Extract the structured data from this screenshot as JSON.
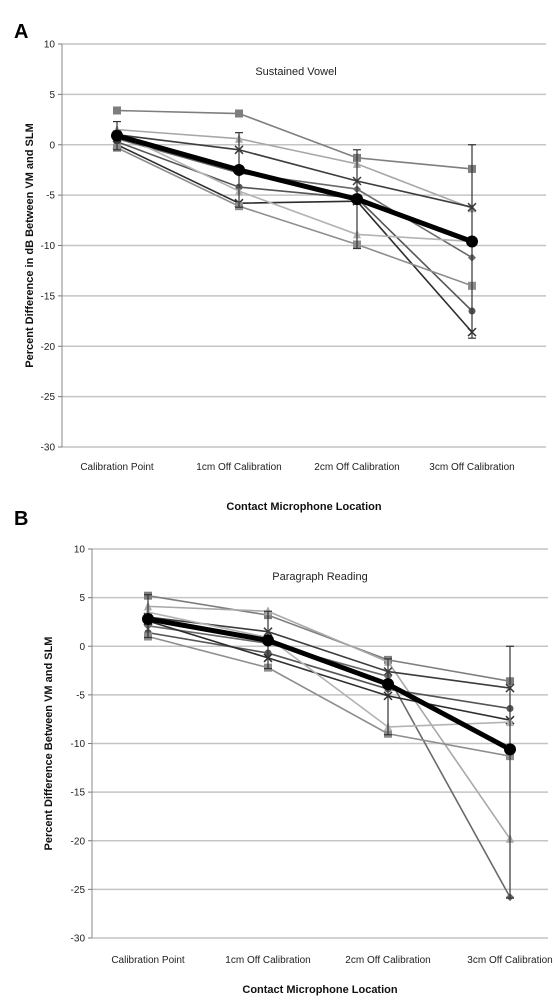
{
  "chart_data": [
    {
      "panel": "A",
      "type": "line",
      "title": "Sustained Vowel",
      "xlabel": "Contact Microphone Location",
      "ylabel": "Percent Difference in dB Between VM and SLM",
      "categories": [
        "Calibration Point",
        "1cm Off Calibration",
        "2cm Off Calibration",
        "3cm Off Calibration"
      ],
      "ylim": [
        -30,
        10
      ],
      "yticks": [
        10,
        5,
        0,
        -5,
        -10,
        -15,
        -20,
        -25,
        -30
      ],
      "grid": true,
      "colors": {
        "mean": "#000000",
        "individual": "#777777",
        "gridline": "#c4c4c4"
      },
      "series": [
        {
          "values": [
            3.4,
            3.1,
            -1.3,
            -2.4
          ]
        },
        {
          "values": [
            1.5,
            0.6,
            -1.9,
            -6.3
          ]
        },
        {
          "values": [
            1.0,
            -0.5,
            -3.6,
            -6.2
          ]
        },
        {
          "values": [
            0.6,
            -2.8,
            -4.4,
            -11.2
          ]
        },
        {
          "values": [
            0.3,
            -4.2,
            -5.3,
            -16.5
          ]
        },
        {
          "values": [
            0.0,
            -5.8,
            -5.6,
            -18.6
          ]
        },
        {
          "values": [
            -0.3,
            -6.1,
            -9.9,
            -14.0
          ]
        },
        {
          "values": [
            1.2,
            -4.6,
            -8.9,
            -9.6
          ]
        },
        {
          "mean": true,
          "values": [
            0.9,
            -2.5,
            -5.4,
            -9.6
          ],
          "error_low": [
            -0.5,
            -6.2,
            -10.3,
            -19.2
          ],
          "error_high": [
            2.3,
            1.2,
            -0.5,
            0.0
          ]
        }
      ]
    },
    {
      "panel": "B",
      "type": "line",
      "title": "Paragraph Reading",
      "xlabel": "Contact Microphone Location",
      "ylabel": "Percent Difference Between VM and SLM",
      "categories": [
        "Calibration Point",
        "1cm Off Calibration",
        "2cm Off Calibration",
        "3cm Off Calibration"
      ],
      "ylim": [
        -30,
        10
      ],
      "yticks": [
        10,
        5,
        0,
        -5,
        -10,
        -15,
        -20,
        -25,
        -30
      ],
      "grid": true,
      "colors": {
        "mean": "#000000",
        "individual": "#777777",
        "gridline": "#c4c4c4"
      },
      "series": [
        {
          "values": [
            5.2,
            3.2,
            -1.4,
            -3.6
          ]
        },
        {
          "values": [
            4.1,
            3.6,
            -1.6,
            -19.8
          ]
        },
        {
          "values": [
            3.0,
            1.5,
            -2.6,
            -4.3
          ]
        },
        {
          "values": [
            2.1,
            0.3,
            -3.1,
            -25.8
          ]
        },
        {
          "values": [
            1.4,
            -0.7,
            -4.4,
            -6.4
          ]
        },
        {
          "values": [
            2.6,
            -1.2,
            -5.1,
            -7.6
          ]
        },
        {
          "values": [
            1.0,
            -2.2,
            -9.0,
            -11.3
          ]
        },
        {
          "values": [
            3.5,
            0.9,
            -8.3,
            -7.8
          ]
        },
        {
          "mean": true,
          "values": [
            2.8,
            0.6,
            -3.9,
            -10.6
          ],
          "error_low": [
            0.9,
            -2.3,
            -9.1,
            -25.9
          ],
          "error_high": [
            5.3,
            3.6,
            -1.3,
            0.0
          ]
        }
      ]
    }
  ]
}
